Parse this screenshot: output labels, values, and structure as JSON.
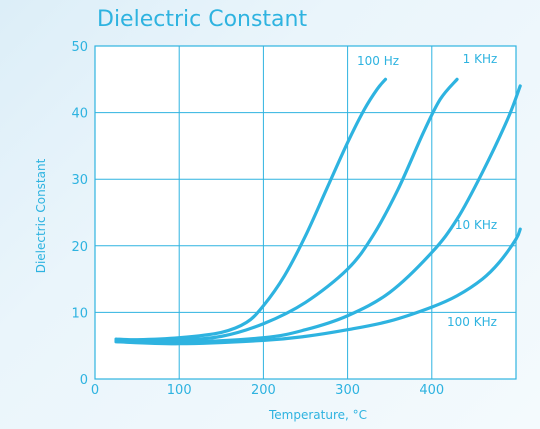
{
  "chart_data": {
    "type": "line",
    "title": "Dielectric Constant",
    "xlabel": "Temperature, °C",
    "ylabel": "Dielectric Constant",
    "xlim": [
      0,
      500
    ],
    "ylim": [
      0,
      50
    ],
    "xticks": [
      "0",
      "100",
      "200",
      "300",
      "400"
    ],
    "yticks": [
      "0",
      "10",
      "20",
      "30",
      "40",
      "50"
    ],
    "grid": true,
    "legend": "inline labels",
    "line_color": "#2eb3e0",
    "series": [
      {
        "name": "100 Hz",
        "x": [
          25,
          50,
          100,
          150,
          180,
          200,
          225,
          250,
          275,
          300,
          320,
          335,
          345
        ],
        "y": [
          6,
          5.9,
          6.2,
          7,
          8.5,
          11,
          15.5,
          21.5,
          28.5,
          35.5,
          40.5,
          43.5,
          45
        ]
      },
      {
        "name": "1 KHz",
        "x": [
          25,
          100,
          150,
          200,
          250,
          300,
          330,
          360,
          390,
          410,
          430
        ],
        "y": [
          5.8,
          5.9,
          6.4,
          8.3,
          11.5,
          16.5,
          21.5,
          28.5,
          37,
          42,
          45
        ]
      },
      {
        "name": "10 KHz",
        "x": [
          25,
          100,
          200,
          250,
          300,
          350,
          400,
          430,
          460,
          490,
          505
        ],
        "y": [
          5.6,
          5.5,
          6.2,
          7.4,
          9.5,
          13,
          19,
          24,
          31,
          39,
          44
        ]
      },
      {
        "name": "100 KHz",
        "x": [
          25,
          100,
          200,
          250,
          300,
          350,
          400,
          430,
          460,
          480,
          500,
          505
        ],
        "y": [
          5.6,
          5.3,
          5.8,
          6.4,
          7.4,
          8.7,
          10.8,
          12.5,
          15,
          17.5,
          21,
          22.5
        ]
      }
    ]
  }
}
